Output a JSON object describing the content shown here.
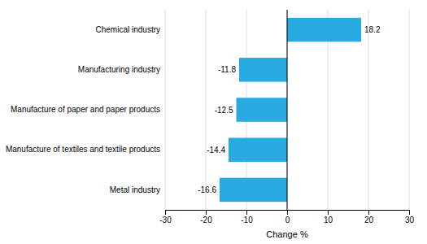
{
  "chart_data": {
    "type": "bar",
    "orientation": "horizontal",
    "categories": [
      "Metal industry",
      "Manufacture of textiles and textile products",
      "Manufacture of paper and paper products",
      "Manufacturing industry",
      "Chemical industry"
    ],
    "values": [
      -16.6,
      -14.4,
      -12.5,
      -11.8,
      18.2
    ],
    "color": "#29abe2",
    "xlim": [
      -30,
      30
    ],
    "xticks": [
      -30,
      -20,
      -10,
      0,
      10,
      20,
      30
    ],
    "xlabel": "Change %",
    "grid": true,
    "data_labels": true
  }
}
